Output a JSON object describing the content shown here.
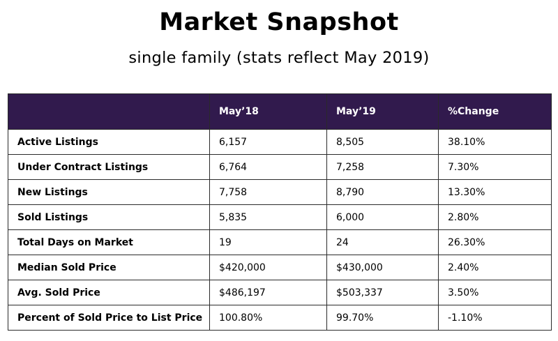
{
  "title": "Market Snapshot",
  "subtitle": "single family (stats reflect May 2019)",
  "colors": {
    "header_background": "#311a4d",
    "header_text": "#ffffff",
    "border": "#2a2a2a"
  },
  "table": {
    "headers": [
      "",
      "May’18",
      "May’19",
      "%Change"
    ],
    "rows": [
      {
        "label": "Active Listings",
        "may18": "6,157",
        "may19": "8,505",
        "change": "38.10%"
      },
      {
        "label": "Under Contract Listings",
        "may18": "6,764",
        "may19": "7,258",
        "change": "7.30%"
      },
      {
        "label": "New Listings",
        "may18": "7,758",
        "may19": "8,790",
        "change": "13.30%"
      },
      {
        "label": "Sold Listings",
        "may18": "5,835",
        "may19": "6,000",
        "change": "2.80%"
      },
      {
        "label": "Total Days on Market",
        "may18": "19",
        "may19": "24",
        "change": "26.30%"
      },
      {
        "label": "Median Sold Price",
        "may18": "$420,000",
        "may19": "$430,000",
        "change": "2.40%"
      },
      {
        "label": "Avg. Sold Price",
        "may18": "$486,197",
        "may19": "$503,337",
        "change": "3.50%"
      },
      {
        "label": "Percent of Sold Price to List Price",
        "may18": "100.80%",
        "may19": "99.70%",
        "change": "-1.10%"
      }
    ]
  }
}
